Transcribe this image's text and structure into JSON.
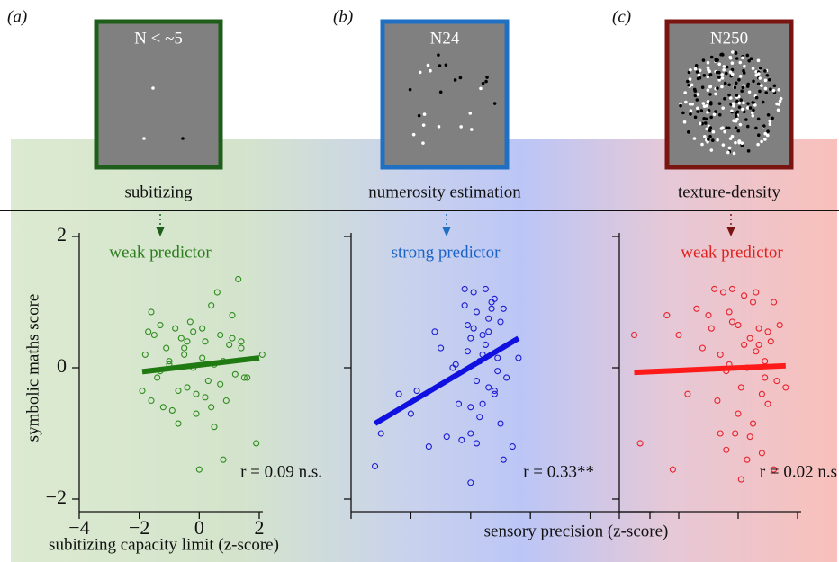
{
  "panels": [
    {
      "letter": "(a)",
      "stimulus": "N < ~5",
      "task": "subitizing"
    },
    {
      "letter": "(b)",
      "stimulus": "N24",
      "task": "numerosity estimation"
    },
    {
      "letter": "(c)",
      "stimulus": "N250",
      "task": "texture-density"
    }
  ],
  "chart_data": [
    {
      "type": "scatter",
      "annotation": "weak predictor",
      "annotation_color": "#2b7d1c",
      "stat": "r = 0.09 n.s.",
      "ylabel": "symbolic maths score",
      "xlabel": "subitizing capacity limit (z-score)",
      "color": "#2e8b1e",
      "xlim": [
        -4,
        2
      ],
      "ylim": [
        -2,
        2
      ],
      "tick_labels": true,
      "xticks": [
        {
          "value": -4,
          "label": "−4"
        },
        {
          "value": -2,
          "label": "−2"
        },
        0,
        2
      ],
      "yticks": [
        {
          "value": -2,
          "label": "−2"
        },
        0,
        2
      ],
      "x": [
        -1.9,
        -1.8,
        -1.7,
        -1.6,
        -1.5,
        -1.4,
        -1.3,
        -1.2,
        -1.1,
        -1.0,
        -0.9,
        -0.8,
        -0.7,
        -0.6,
        -0.5,
        -0.4,
        -0.3,
        -0.2,
        -0.1,
        0.0,
        0.1,
        0.2,
        0.3,
        0.4,
        0.5,
        0.6,
        0.7,
        0.8,
        0.9,
        1.0,
        1.1,
        1.2,
        1.3,
        1.4,
        1.5,
        1.6,
        1.9,
        2.1,
        -1.6,
        -1.3,
        -1.0,
        -0.7,
        -0.4,
        -0.1,
        0.2,
        0.5,
        0.8,
        1.1,
        1.4,
        -0.5,
        0.1,
        0.7,
        -0.2,
        0.4
      ],
      "y": [
        -0.35,
        0.2,
        0.55,
        -0.5,
        0.5,
        -0.15,
        0.65,
        -0.6,
        0.3,
        0.05,
        -0.65,
        0.6,
        -0.85,
        0.45,
        0.3,
        -0.3,
        0.7,
        0.55,
        -0.4,
        -1.55,
        0.15,
        0.4,
        -0.2,
        0.95,
        -0.9,
        1.15,
        0.5,
        0.1,
        -0.5,
        0.35,
        0.8,
        -0.1,
        1.35,
        0.4,
        -0.15,
        -0.15,
        -1.15,
        0.2,
        0.85,
        -0.05,
        0.1,
        -0.35,
        0.4,
        -0.7,
        -0.45,
        0.05,
        -1.4,
        0.45,
        0.3,
        0.2,
        0.6,
        -0.25,
        0.0,
        -0.6
      ],
      "fit": {
        "x": [
          -1.9,
          2.0
        ],
        "y": [
          -0.06,
          0.15
        ],
        "color": "#1f7a12"
      }
    },
    {
      "type": "scatter",
      "annotation": "strong predictor",
      "annotation_color": "#1a62c6",
      "stat": "r = 0.33**",
      "xlabel": "sensory precision (z-score)",
      "color": "#1a1ad0",
      "xlim": [
        0,
        5
      ],
      "ylim": [
        -2,
        2
      ],
      "tick_labels": false,
      "xticks": [
        0,
        1,
        2,
        3,
        4,
        5
      ],
      "yticks": [
        -2,
        0,
        2
      ],
      "x": [
        0.4,
        0.5,
        0.8,
        1.0,
        1.1,
        1.3,
        1.4,
        1.5,
        1.6,
        1.7,
        1.8,
        1.85,
        1.9,
        1.95,
        2.0,
        2.0,
        2.05,
        2.1,
        2.1,
        2.15,
        2.2,
        2.2,
        2.25,
        2.3,
        2.3,
        2.35,
        2.4,
        2.4,
        2.45,
        2.5,
        2.5,
        2.55,
        2.6,
        2.7,
        2.8,
        1.9,
        2.0,
        2.1,
        2.2,
        2.3,
        2.4,
        1.95,
        2.05,
        2.15,
        2.25,
        2.35,
        2.45,
        1.75,
        2.55,
        2.0
      ],
      "y": [
        -1.5,
        -1.0,
        -0.4,
        -0.7,
        -0.35,
        -1.2,
        0.55,
        0.3,
        -1.05,
        0.0,
        -0.55,
        -1.1,
        1.2,
        0.65,
        -1.0,
        -1.75,
        1.15,
        0.85,
        -0.2,
        0.1,
        0.2,
        -0.55,
        1.2,
        0.55,
        -0.3,
        0.9,
        -0.4,
        1.05,
        0.15,
        -0.85,
        0.7,
        -1.4,
        -0.15,
        -1.2,
        0.15,
        0.95,
        0.45,
        -1.15,
        0.5,
        0.75,
        -0.35,
        0.25,
        0.6,
        -0.75,
        0.35,
        1.0,
        -0.05,
        0.05,
        0.9,
        -0.6
      ],
      "fit": {
        "x": [
          0.4,
          2.8
        ],
        "y": [
          -0.85,
          0.45
        ],
        "color": "#1010e0"
      }
    },
    {
      "type": "scatter",
      "annotation": "weak predictor",
      "annotation_color": "#e0201e",
      "stat": "r = 0.02 n.s",
      "color": "#e8202a",
      "xlim": [
        0,
        3
      ],
      "ylim": [
        -2,
        2
      ],
      "tick_labels": false,
      "xticks": [
        0,
        1,
        2,
        3
      ],
      "yticks": [
        -2,
        0,
        2
      ],
      "x": [
        0.25,
        0.35,
        0.8,
        0.9,
        1.0,
        1.15,
        1.3,
        1.4,
        1.5,
        1.6,
        1.65,
        1.7,
        1.75,
        1.8,
        1.85,
        1.9,
        1.95,
        2.0,
        2.05,
        2.1,
        2.15,
        2.2,
        2.25,
        2.3,
        2.35,
        2.4,
        2.45,
        2.5,
        2.55,
        2.6,
        2.65,
        2.7,
        2.8,
        1.7,
        1.8,
        1.9,
        2.0,
        2.1,
        2.2,
        2.3,
        2.4,
        2.5,
        2.6,
        1.55,
        2.05,
        2.35,
        2.45,
        2.15,
        1.85,
        2.25
      ],
      "y": [
        0.5,
        -1.15,
        0.8,
        -1.55,
        0.5,
        -0.4,
        0.9,
        0.3,
        0.8,
        1.2,
        -0.5,
        -1.0,
        1.15,
        -0.05,
        0.85,
        1.2,
        -1.0,
        0.65,
        -0.3,
        1.1,
        0.0,
        0.45,
        -0.85,
        1.15,
        0.6,
        -1.3,
        0.1,
        -0.55,
        0.4,
        1.0,
        -0.2,
        0.65,
        -0.3,
        0.2,
        -1.25,
        0.7,
        -0.7,
        0.35,
        -1.05,
        0.25,
        -0.4,
        0.55,
        -1.55,
        0.6,
        -1.7,
        0.35,
        -0.15,
        -1.4,
        0.05,
        1.0
      ],
      "fit": {
        "x": [
          0.25,
          2.8
        ],
        "y": [
          -0.07,
          0.03
        ],
        "color": "#ff1a1a"
      }
    }
  ]
}
